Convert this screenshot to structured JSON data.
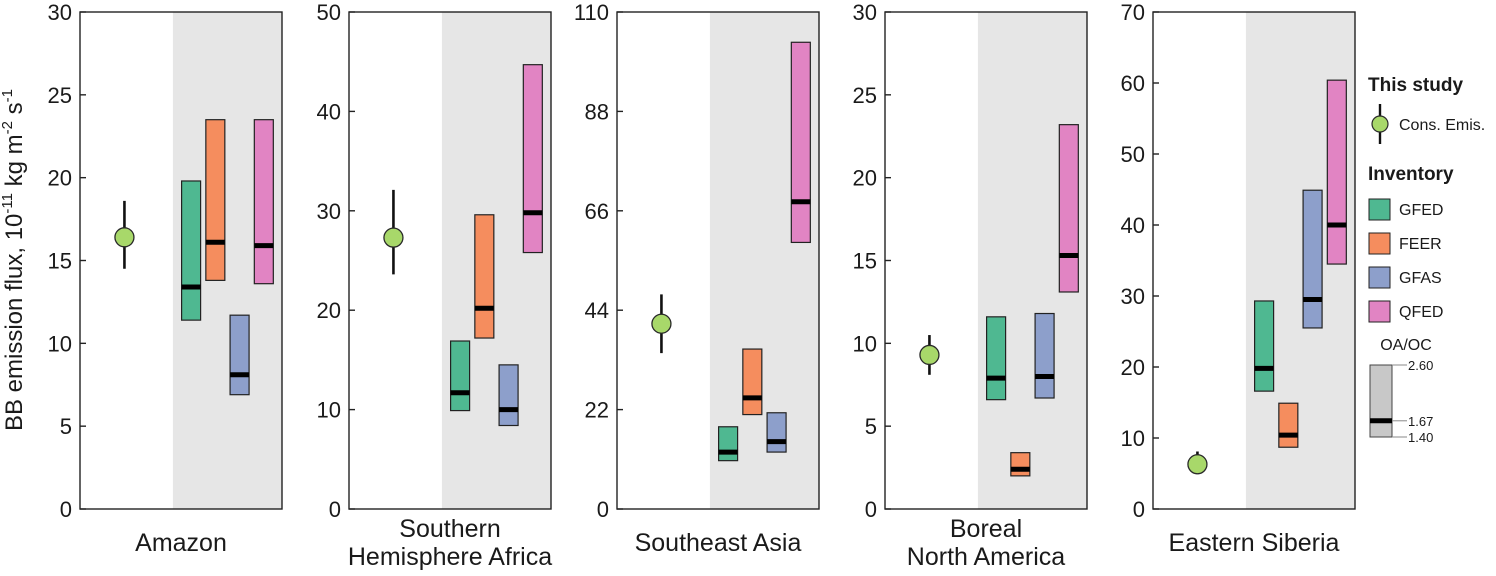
{
  "chart_data": {
    "type": "range",
    "ylabel": {
      "prefix": "BB emission flux, 10",
      "exp1": "-11",
      "mid": " kg m",
      "exp2": "-2",
      "mid2": " s",
      "exp3": "-1"
    },
    "panels": [
      {
        "region": [
          "Amazon"
        ],
        "ylim": [
          0,
          30
        ],
        "ticks": [
          "0",
          "5",
          "10",
          "15",
          "20",
          "25",
          "30"
        ],
        "this_study": {
          "value": 16.4,
          "low": 14.5,
          "high": 18.6
        },
        "inventories": [
          {
            "name": "GFED",
            "low": 11.4,
            "high": 19.8,
            "median": 13.4
          },
          {
            "name": "FEER",
            "low": 13.8,
            "high": 23.5,
            "median": 16.1
          },
          {
            "name": "GFAS",
            "low": 6.9,
            "high": 11.7,
            "median": 8.1
          },
          {
            "name": "QFED",
            "low": 13.6,
            "high": 23.5,
            "median": 15.9
          }
        ]
      },
      {
        "region": [
          "Southern",
          "Hemisphere Africa"
        ],
        "ylim": [
          0,
          50
        ],
        "ticks": [
          "0",
          "10",
          "20",
          "30",
          "40",
          "50"
        ],
        "this_study": {
          "value": 27.3,
          "low": 23.6,
          "high": 32.1
        },
        "inventories": [
          {
            "name": "GFED",
            "low": 9.9,
            "high": 16.9,
            "median": 11.7
          },
          {
            "name": "FEER",
            "low": 17.2,
            "high": 29.6,
            "median": 20.2
          },
          {
            "name": "GFAS",
            "low": 8.4,
            "high": 14.5,
            "median": 10.0
          },
          {
            "name": "QFED",
            "low": 25.8,
            "high": 44.7,
            "median": 29.8
          }
        ]
      },
      {
        "region": [
          "Southeast Asia"
        ],
        "ylim": [
          0,
          110
        ],
        "ticks": [
          "0",
          "22",
          "44",
          "66",
          "88",
          "110"
        ],
        "this_study": {
          "value": 41.0,
          "low": 34.5,
          "high": 47.5
        },
        "inventories": [
          {
            "name": "GFED",
            "low": 10.7,
            "high": 18.2,
            "median": 12.6
          },
          {
            "name": "FEER",
            "low": 20.9,
            "high": 35.4,
            "median": 24.6
          },
          {
            "name": "GFAS",
            "low": 12.6,
            "high": 21.3,
            "median": 14.9
          },
          {
            "name": "QFED",
            "low": 59.0,
            "high": 103.3,
            "median": 68.0
          }
        ]
      },
      {
        "region": [
          "Boreal",
          "North America"
        ],
        "ylim": [
          0,
          30
        ],
        "ticks": [
          "0",
          "5",
          "10",
          "15",
          "20",
          "25",
          "30"
        ],
        "this_study": {
          "value": 9.3,
          "low": 8.1,
          "high": 10.5
        },
        "inventories": [
          {
            "name": "GFED",
            "low": 6.6,
            "high": 11.6,
            "median": 7.9
          },
          {
            "name": "FEER",
            "low": 2.0,
            "high": 3.4,
            "median": 2.4
          },
          {
            "name": "GFAS",
            "low": 6.7,
            "high": 11.8,
            "median": 8.0
          },
          {
            "name": "QFED",
            "low": 13.1,
            "high": 23.2,
            "median": 15.3
          }
        ]
      },
      {
        "region": [
          "Eastern Siberia"
        ],
        "ylim": [
          0,
          70
        ],
        "ticks": [
          "0",
          "10",
          "20",
          "30",
          "40",
          "50",
          "60",
          "70"
        ],
        "this_study": {
          "value": 6.3,
          "low": 4.9,
          "high": 8.1
        },
        "inventories": [
          {
            "name": "GFED",
            "low": 16.6,
            "high": 29.3,
            "median": 19.8
          },
          {
            "name": "FEER",
            "low": 8.7,
            "high": 14.9,
            "median": 10.4
          },
          {
            "name": "GFAS",
            "low": 25.5,
            "high": 44.9,
            "median": 29.5
          },
          {
            "name": "QFED",
            "low": 34.5,
            "high": 60.4,
            "median": 40.0
          }
        ]
      }
    ],
    "legend": {
      "this_study_title": "This study",
      "this_study_label": "Cons. Emis.",
      "inventory_title": "Inventory",
      "inventories": [
        {
          "name": "GFED",
          "color": "#4fb891"
        },
        {
          "name": "FEER",
          "color": "#f58d5e"
        },
        {
          "name": "GFAS",
          "color": "#8d9fcb"
        },
        {
          "name": "QFED",
          "color": "#e184c3"
        }
      ],
      "ratio_title": "OA/OC",
      "ratio_high": "2.60",
      "ratio_mid": "1.67",
      "ratio_low": "1.40",
      "ratio_values": {
        "high": 2.6,
        "mid": 1.67,
        "low": 1.4
      }
    },
    "colors": {
      "this_study_fill": "#a8d86a",
      "shade": "#e6e6e6",
      "ratio_box": "#c8c8c8"
    }
  }
}
